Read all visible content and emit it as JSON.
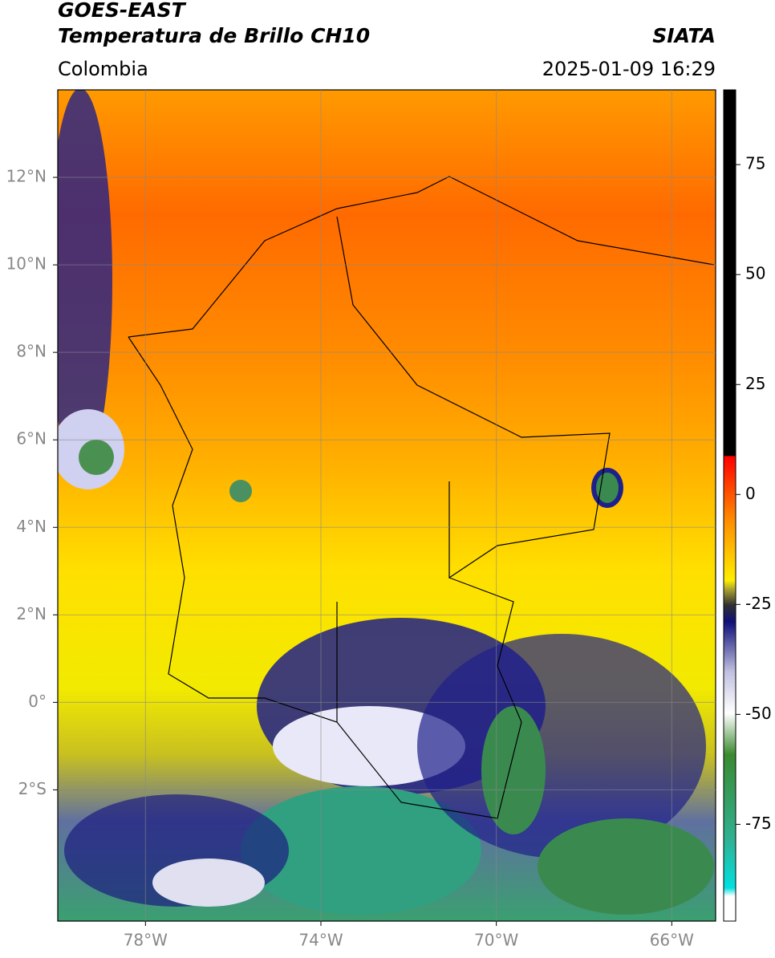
{
  "header": {
    "title": "GOES-EAST",
    "subtitle": "Temperatura de Brillo CH10",
    "region": "Colombia",
    "source": "SIATA",
    "datetime": "2025-01-09 16:29"
  },
  "map": {
    "xlim": [
      -80,
      -65
    ],
    "ylim": [
      -5,
      14
    ],
    "xticks": [
      {
        "value": -78,
        "label": "78°W"
      },
      {
        "value": -74,
        "label": "74°W"
      },
      {
        "value": -70,
        "label": "70°W"
      },
      {
        "value": -66,
        "label": "66°W"
      }
    ],
    "yticks": [
      {
        "value": 12,
        "label": "12°N"
      },
      {
        "value": 10,
        "label": "10°N"
      },
      {
        "value": 8,
        "label": "8°N"
      },
      {
        "value": 6,
        "label": "6°N"
      },
      {
        "value": 4,
        "label": "4°N"
      },
      {
        "value": 2,
        "label": "2°N"
      },
      {
        "value": 0,
        "label": "0°"
      },
      {
        "value": -2,
        "label": "2°S"
      }
    ],
    "grid": true
  },
  "colorbar": {
    "lim": [
      -97,
      92
    ],
    "ticks": [
      75,
      50,
      25,
      0,
      -25,
      -50,
      -75
    ]
  }
}
